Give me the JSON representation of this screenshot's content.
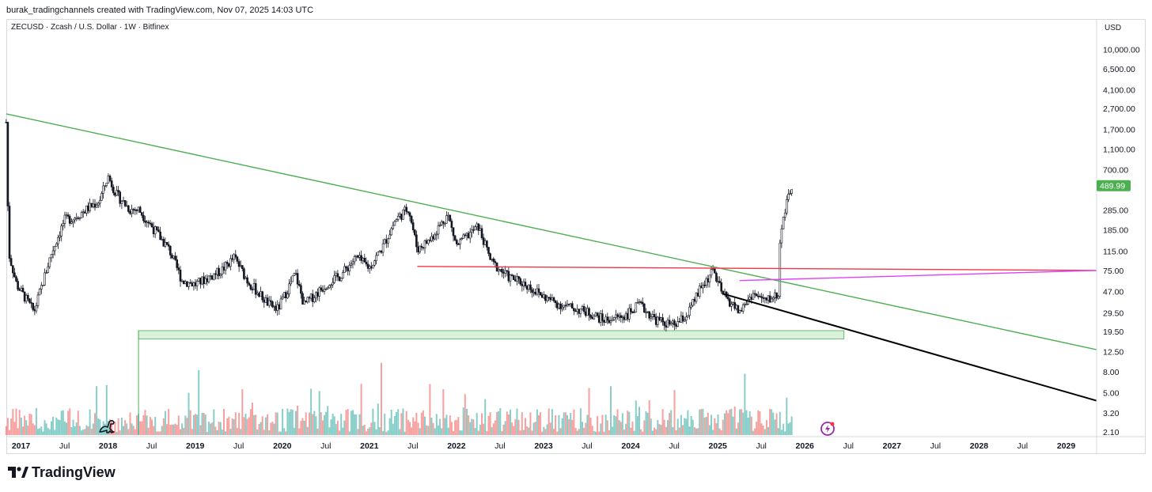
{
  "header": {
    "credit": "burak_tradingchannels created with TradingView.com, Nov 07, 2025 14:03 UTC"
  },
  "symbol": {
    "title": "ZECUSD · Zcash / U.S. Dollar · 1W · Bitfinex"
  },
  "price_axis": {
    "currency": "USD",
    "ticks": [
      "10,000.00",
      "6,500.00",
      "4,100.00",
      "2,700.00",
      "1,700.00",
      "1,100.00",
      "700.00",
      "285.00",
      "185.00",
      "115.00",
      "75.00",
      "47.00",
      "29.50",
      "19.50",
      "12.50",
      "8.00",
      "5.00",
      "3.20",
      "2.10"
    ],
    "tick_values": [
      10000,
      6500,
      4100,
      2700,
      1700,
      1100,
      700,
      285,
      185,
      115,
      75,
      47,
      29.5,
      19.5,
      12.5,
      8,
      5,
      3.2,
      2.1
    ],
    "last_price_label": "489.99",
    "last_price_color": "#4caf50"
  },
  "time_axis": {
    "labels": [
      {
        "t": "2017",
        "year": true,
        "time": 2017.0
      },
      {
        "t": "Jul",
        "year": false,
        "time": 2017.5
      },
      {
        "t": "2018",
        "year": true,
        "time": 2018.0
      },
      {
        "t": "Jul",
        "year": false,
        "time": 2018.5
      },
      {
        "t": "2019",
        "year": true,
        "time": 2019.0
      },
      {
        "t": "Jul",
        "year": false,
        "time": 2019.5
      },
      {
        "t": "2020",
        "year": true,
        "time": 2020.0
      },
      {
        "t": "Jul",
        "year": false,
        "time": 2020.5
      },
      {
        "t": "2021",
        "year": true,
        "time": 2021.0
      },
      {
        "t": "Jul",
        "year": false,
        "time": 2021.5
      },
      {
        "t": "2022",
        "year": true,
        "time": 2022.0
      },
      {
        "t": "Jul",
        "year": false,
        "time": 2022.5
      },
      {
        "t": "2023",
        "year": true,
        "time": 2023.0
      },
      {
        "t": "Jul",
        "year": false,
        "time": 2023.5
      },
      {
        "t": "2024",
        "year": true,
        "time": 2024.0
      },
      {
        "t": "Jul",
        "year": false,
        "time": 2024.5
      },
      {
        "t": "2025",
        "year": true,
        "time": 2025.0
      },
      {
        "t": "Jul",
        "year": false,
        "time": 2025.5
      },
      {
        "t": "2026",
        "year": true,
        "time": 2026.0
      },
      {
        "t": "Jul",
        "year": false,
        "time": 2026.5
      },
      {
        "t": "2027",
        "year": true,
        "time": 2027.0
      },
      {
        "t": "Jul",
        "year": false,
        "time": 2027.5
      },
      {
        "t": "2028",
        "year": true,
        "time": 2028.0
      },
      {
        "t": "Jul",
        "year": false,
        "time": 2028.5
      },
      {
        "t": "2029",
        "year": true,
        "time": 2029.0
      }
    ]
  },
  "footer": {
    "brand": "TradingView"
  },
  "colors": {
    "up": "#26a69a",
    "down": "#ef5350",
    "candle": "#131722",
    "resistance_trendline": "#4caf50",
    "horizontal_line": "#f23645",
    "magenta_line": "#e040fb",
    "black_line": "#000000",
    "support_zone_fill": "#cbeccb",
    "support_zone_stroke": "#4caf50"
  },
  "icons": {
    "bottom_left": "dinosaur-icon",
    "bottom_right": "lightning-badge-icon"
  },
  "chart_data": {
    "type": "candlestick",
    "title": "ZECUSD · Zcash / U.S. Dollar · 1W · Bitfinex",
    "scale": "log",
    "ylim": [
      2.0,
      12000
    ],
    "xlim": [
      2016.85,
      2029.35
    ],
    "price_anchors": [
      {
        "time": 2016.83,
        "price": 2000
      },
      {
        "time": 2016.86,
        "price": 110
      },
      {
        "time": 2016.95,
        "price": 55
      },
      {
        "time": 2017.1,
        "price": 35
      },
      {
        "time": 2017.15,
        "price": 30
      },
      {
        "time": 2017.35,
        "price": 110
      },
      {
        "time": 2017.5,
        "price": 230
      },
      {
        "time": 2017.6,
        "price": 240
      },
      {
        "time": 2017.9,
        "price": 350
      },
      {
        "time": 2018.0,
        "price": 600
      },
      {
        "time": 2018.1,
        "price": 400
      },
      {
        "time": 2018.25,
        "price": 290
      },
      {
        "time": 2018.35,
        "price": 290
      },
      {
        "time": 2018.5,
        "price": 200
      },
      {
        "time": 2018.7,
        "price": 120
      },
      {
        "time": 2018.85,
        "price": 60
      },
      {
        "time": 2019.0,
        "price": 55
      },
      {
        "time": 2019.3,
        "price": 75
      },
      {
        "time": 2019.45,
        "price": 100
      },
      {
        "time": 2019.6,
        "price": 60
      },
      {
        "time": 2019.85,
        "price": 35
      },
      {
        "time": 2019.95,
        "price": 32
      },
      {
        "time": 2020.15,
        "price": 70
      },
      {
        "time": 2020.25,
        "price": 35
      },
      {
        "time": 2020.55,
        "price": 60
      },
      {
        "time": 2020.65,
        "price": 65
      },
      {
        "time": 2020.85,
        "price": 100
      },
      {
        "time": 2021.0,
        "price": 80
      },
      {
        "time": 2021.15,
        "price": 125
      },
      {
        "time": 2021.3,
        "price": 230
      },
      {
        "time": 2021.45,
        "price": 300
      },
      {
        "time": 2021.55,
        "price": 120
      },
      {
        "time": 2021.7,
        "price": 150
      },
      {
        "time": 2021.9,
        "price": 260
      },
      {
        "time": 2022.0,
        "price": 130
      },
      {
        "time": 2022.25,
        "price": 200
      },
      {
        "time": 2022.4,
        "price": 90
      },
      {
        "time": 2022.6,
        "price": 65
      },
      {
        "time": 2022.8,
        "price": 55
      },
      {
        "time": 2023.0,
        "price": 42
      },
      {
        "time": 2023.2,
        "price": 35
      },
      {
        "time": 2023.5,
        "price": 30
      },
      {
        "time": 2023.7,
        "price": 25
      },
      {
        "time": 2023.95,
        "price": 28
      },
      {
        "time": 2024.1,
        "price": 35
      },
      {
        "time": 2024.3,
        "price": 25
      },
      {
        "time": 2024.5,
        "price": 22
      },
      {
        "time": 2024.65,
        "price": 28
      },
      {
        "time": 2024.8,
        "price": 50
      },
      {
        "time": 2024.95,
        "price": 75
      },
      {
        "time": 2025.05,
        "price": 45
      },
      {
        "time": 2025.25,
        "price": 30
      },
      {
        "time": 2025.4,
        "price": 45
      },
      {
        "time": 2025.55,
        "price": 38
      },
      {
        "time": 2025.7,
        "price": 45
      },
      {
        "time": 2025.72,
        "price": 190
      },
      {
        "time": 2025.78,
        "price": 300
      },
      {
        "time": 2025.85,
        "price": 490
      }
    ],
    "last_price": 489.99,
    "lines": [
      {
        "name": "descending-trendline",
        "color": "#4caf50",
        "from": {
          "time": 2016.83,
          "price": 2400
        },
        "to": {
          "time": 2029.35,
          "price": 13
        }
      },
      {
        "name": "horizontal-resistance",
        "color": "#f23645",
        "from": {
          "time": 2021.55,
          "price": 82
        },
        "to": {
          "time": 2029.35,
          "price": 75
        }
      },
      {
        "name": "magenta-trendline",
        "color": "#e040fb",
        "from": {
          "time": 2025.25,
          "price": 60
        },
        "to": {
          "time": 2029.35,
          "price": 75
        }
      },
      {
        "name": "black-trendline",
        "color": "#000000",
        "from": {
          "time": 2025.05,
          "price": 45
        },
        "to": {
          "time": 2029.35,
          "price": 4.2
        }
      }
    ],
    "support_zone": {
      "time_from": 2018.35,
      "time_to": 2026.45,
      "price_low": 16.5,
      "price_high": 19.8
    }
  }
}
